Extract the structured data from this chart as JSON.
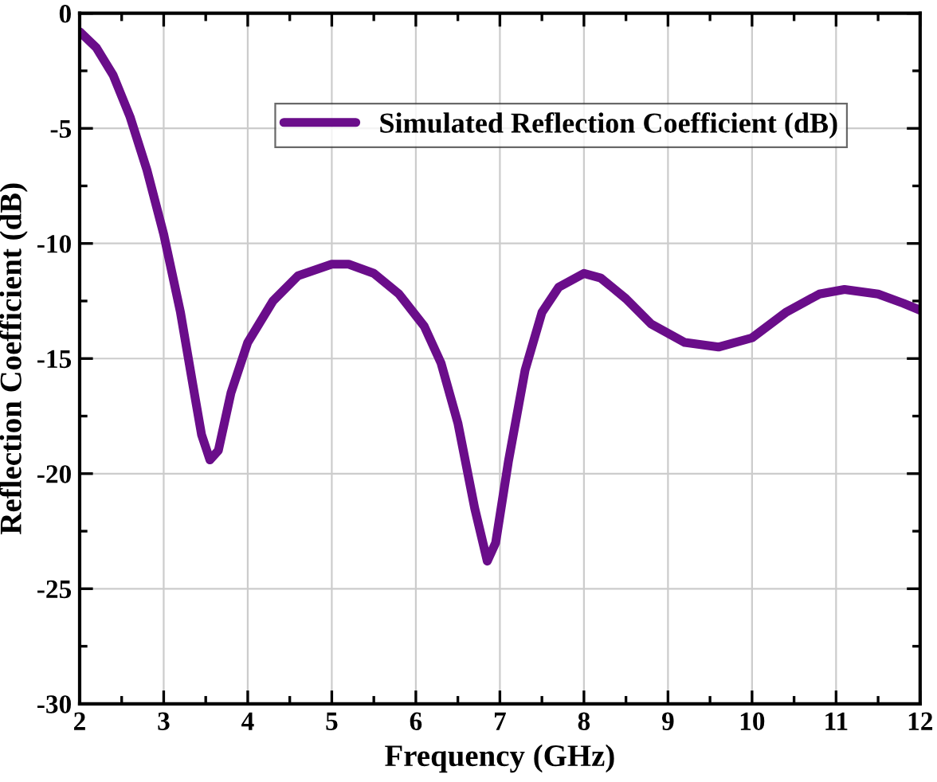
{
  "chart_data": {
    "type": "line",
    "xlabel": "Frequency (GHz)",
    "ylabel": "Reflection Coefficient (dB)",
    "xlim": [
      2,
      12
    ],
    "xticks": [
      2,
      3,
      4,
      5,
      6,
      7,
      8,
      9,
      10,
      11,
      12
    ],
    "ylim": [
      -30,
      0
    ],
    "yticks": [
      -30,
      -25,
      -20,
      -15,
      -10,
      -5,
      0
    ],
    "grid": true,
    "legend": "top right",
    "marker": "none",
    "line_style": "solid",
    "series": [
      {
        "name": "Simulated Reflection Coefficient (dB)",
        "color": "#6a0d8a",
        "x": [
          2,
          2.2,
          2.4,
          2.6,
          2.8,
          3.0,
          3.2,
          3.35,
          3.45,
          3.55,
          3.65,
          3.8,
          4.0,
          4.3,
          4.6,
          5.0,
          5.2,
          5.5,
          5.8,
          6.1,
          6.3,
          6.5,
          6.7,
          6.85,
          6.95,
          7.1,
          7.3,
          7.5,
          7.7,
          8.0,
          8.2,
          8.5,
          8.8,
          9.2,
          9.6,
          10.0,
          10.4,
          10.8,
          11.1,
          11.5,
          11.8,
          12
        ],
        "values": [
          -0.8,
          -1.5,
          -2.7,
          -4.5,
          -6.8,
          -9.6,
          -13,
          -16.2,
          -18.3,
          -19.4,
          -19,
          -16.5,
          -14.3,
          -12.5,
          -11.4,
          -10.9,
          -10.9,
          -11.3,
          -12.2,
          -13.6,
          -15.2,
          -17.8,
          -21.5,
          -23.8,
          -23,
          -19.5,
          -15.5,
          -13,
          -11.9,
          -11.3,
          -11.5,
          -12.4,
          -13.5,
          -14.3,
          -14.5,
          -14.1,
          -13,
          -12.2,
          -12,
          -12.2,
          -12.6,
          -12.9
        ]
      }
    ]
  }
}
